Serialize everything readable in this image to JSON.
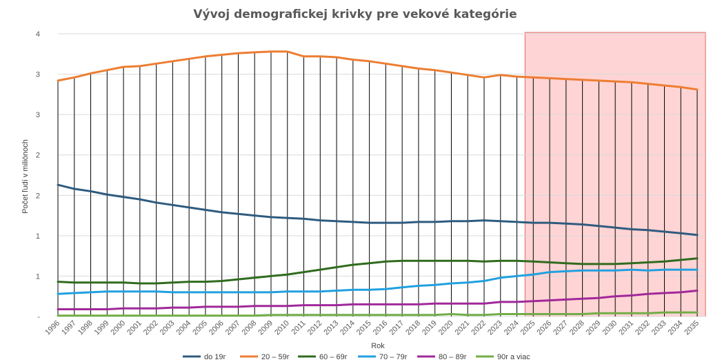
{
  "chart_data": {
    "type": "line",
    "title": "Vývoj demografickej krivky pre vekové kategórie",
    "xlabel": "Rok",
    "ylabel": "Počet ľudí v miliónoch",
    "ylim": [
      0,
      3.5
    ],
    "y_tick_values": [
      0,
      0.5,
      1,
      1.5,
      2,
      2.5,
      3,
      3.5
    ],
    "y_tick_labels": [
      "-",
      "1",
      "1",
      "2",
      "2",
      "3",
      "3",
      "4"
    ],
    "categories": [
      "1996",
      "1997",
      "1998",
      "1999",
      "2000",
      "2001",
      "2002",
      "2003",
      "2004",
      "2005",
      "2006",
      "2007",
      "2008",
      "2009",
      "2010",
      "2011",
      "2012",
      "2013",
      "2014",
      "2015",
      "2016",
      "2017",
      "2018",
      "2019",
      "2020",
      "2021",
      "2022",
      "2023",
      "2024",
      "2025",
      "2026",
      "2027",
      "2028",
      "2029",
      "2030",
      "2031",
      "2032",
      "2033",
      "2034",
      "2035"
    ],
    "highlight_region": {
      "from": "2025",
      "to": "2035",
      "color": "#ffcccc",
      "border": "#e06666"
    },
    "grid": {
      "vertical": true,
      "horizontal": true
    },
    "legend_position": "bottom",
    "series": [
      {
        "name": "do 19r",
        "color": "#2e5b7f",
        "values": [
          1.63,
          1.58,
          1.55,
          1.51,
          1.48,
          1.45,
          1.41,
          1.38,
          1.35,
          1.32,
          1.29,
          1.27,
          1.25,
          1.23,
          1.22,
          1.21,
          1.19,
          1.18,
          1.17,
          1.16,
          1.16,
          1.16,
          1.17,
          1.17,
          1.18,
          1.18,
          1.19,
          1.18,
          1.17,
          1.16,
          1.16,
          1.15,
          1.14,
          1.12,
          1.1,
          1.08,
          1.07,
          1.05,
          1.03,
          1.01
        ]
      },
      {
        "name": "20 – 59r",
        "color": "#ed7d31",
        "values": [
          2.92,
          2.96,
          3.01,
          3.05,
          3.09,
          3.1,
          3.13,
          3.16,
          3.19,
          3.22,
          3.24,
          3.26,
          3.27,
          3.28,
          3.28,
          3.22,
          3.22,
          3.21,
          3.18,
          3.16,
          3.13,
          3.1,
          3.07,
          3.05,
          3.02,
          2.99,
          2.96,
          2.99,
          2.97,
          2.96,
          2.95,
          2.94,
          2.93,
          2.92,
          2.91,
          2.9,
          2.88,
          2.86,
          2.84,
          2.81
        ]
      },
      {
        "name": "60 – 69r",
        "color": "#2f6b1e",
        "values": [
          0.43,
          0.42,
          0.42,
          0.42,
          0.42,
          0.41,
          0.41,
          0.42,
          0.43,
          0.43,
          0.44,
          0.46,
          0.48,
          0.5,
          0.52,
          0.55,
          0.58,
          0.61,
          0.64,
          0.66,
          0.68,
          0.69,
          0.69,
          0.69,
          0.69,
          0.69,
          0.68,
          0.69,
          0.69,
          0.68,
          0.67,
          0.66,
          0.65,
          0.65,
          0.65,
          0.66,
          0.67,
          0.68,
          0.7,
          0.72
        ]
      },
      {
        "name": "70 – 79r",
        "color": "#20a0e0",
        "values": [
          0.28,
          0.29,
          0.3,
          0.31,
          0.31,
          0.31,
          0.31,
          0.3,
          0.3,
          0.3,
          0.3,
          0.3,
          0.3,
          0.3,
          0.31,
          0.31,
          0.31,
          0.32,
          0.33,
          0.33,
          0.34,
          0.36,
          0.38,
          0.39,
          0.41,
          0.42,
          0.44,
          0.48,
          0.5,
          0.52,
          0.55,
          0.56,
          0.57,
          0.57,
          0.57,
          0.58,
          0.57,
          0.58,
          0.58,
          0.58
        ]
      },
      {
        "name": "80 – 89r",
        "color": "#a0289a",
        "values": [
          0.09,
          0.09,
          0.09,
          0.09,
          0.1,
          0.1,
          0.1,
          0.11,
          0.11,
          0.12,
          0.12,
          0.12,
          0.13,
          0.13,
          0.13,
          0.14,
          0.14,
          0.14,
          0.15,
          0.15,
          0.15,
          0.15,
          0.15,
          0.16,
          0.16,
          0.16,
          0.16,
          0.18,
          0.18,
          0.19,
          0.2,
          0.21,
          0.22,
          0.23,
          0.25,
          0.26,
          0.28,
          0.29,
          0.3,
          0.32
        ]
      },
      {
        "name": "90r a viac",
        "color": "#70ad47",
        "values": [
          0.01,
          0.01,
          0.01,
          0.01,
          0.01,
          0.01,
          0.01,
          0.01,
          0.01,
          0.01,
          0.01,
          0.01,
          0.01,
          0.02,
          0.02,
          0.02,
          0.02,
          0.02,
          0.02,
          0.02,
          0.02,
          0.02,
          0.02,
          0.02,
          0.03,
          0.02,
          0.02,
          0.03,
          0.03,
          0.03,
          0.03,
          0.03,
          0.03,
          0.04,
          0.04,
          0.04,
          0.04,
          0.05,
          0.05,
          0.05
        ]
      }
    ]
  }
}
